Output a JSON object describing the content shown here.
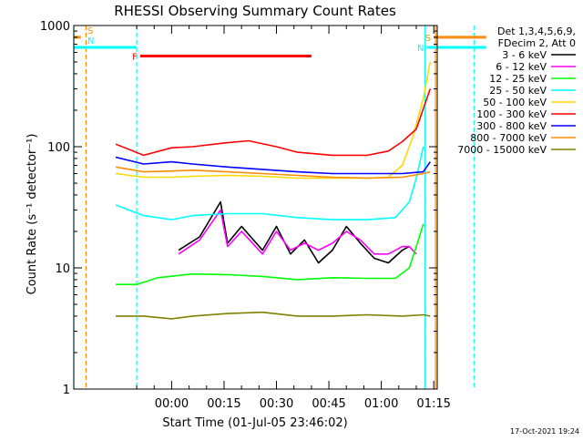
{
  "chart_data": {
    "type": "line",
    "title": "RHESSI Observing Summary Count Rates",
    "xlabel": "Start Time (01-Jul-05 23:46:02)",
    "ylabel": "Count Rate (s⁻¹ detector⁻¹)",
    "y_scale": "log",
    "ylim": [
      1,
      1000
    ],
    "xlim_minutes": [
      -14,
      90
    ],
    "x_ticks": [
      {
        "t": 14,
        "label": "00:00"
      },
      {
        "t": 29,
        "label": "00:15"
      },
      {
        "t": 44,
        "label": "00:30"
      },
      {
        "t": 59,
        "label": "00:45"
      },
      {
        "t": 74,
        "label": "01:00"
      },
      {
        "t": 89,
        "label": "01:15"
      }
    ],
    "y_ticks": [
      {
        "v": 1,
        "label": "1"
      },
      {
        "v": 10,
        "label": "10"
      },
      {
        "v": 100,
        "label": "100"
      },
      {
        "v": 1000,
        "label": "1000"
      }
    ],
    "legend_header": [
      "Det 1,3,4,5,6,9,",
      "FDecim 2, Att 0"
    ],
    "legend_placement": "right",
    "series": [
      {
        "name": "3 - 6 keV",
        "color": "#000000",
        "t": [
          16,
          22,
          28,
          30,
          34,
          40,
          44,
          48,
          52,
          56,
          60,
          64,
          68,
          72,
          76,
          80,
          82
        ],
        "values": [
          14,
          18,
          35,
          16,
          22,
          14,
          22,
          13,
          17,
          11,
          14,
          22,
          16,
          12,
          11,
          14,
          15
        ]
      },
      {
        "name": "6 - 12 keV",
        "color": "#ff00ff",
        "t": [
          16,
          22,
          28,
          30,
          34,
          40,
          44,
          48,
          52,
          56,
          60,
          64,
          68,
          72,
          76,
          80,
          82,
          84
        ],
        "values": [
          13,
          17,
          30,
          15,
          20,
          13,
          20,
          14,
          16,
          14,
          16,
          20,
          17,
          13,
          13,
          15,
          15,
          13
        ]
      },
      {
        "name": "12 - 25 keV",
        "color": "#00ff00",
        "t": [
          -2,
          4,
          10,
          20,
          30,
          40,
          50,
          60,
          70,
          78,
          82,
          84,
          86
        ],
        "values": [
          7.3,
          7.3,
          8.3,
          8.9,
          8.8,
          8.5,
          8,
          8.3,
          8.2,
          8.2,
          10,
          15,
          23
        ]
      },
      {
        "name": "25 - 50 keV",
        "color": "#00ffff",
        "t": [
          -2,
          6,
          14,
          20,
          30,
          40,
          50,
          60,
          70,
          78,
          82,
          84,
          86
        ],
        "values": [
          33,
          27,
          25,
          27,
          28,
          28,
          26,
          25,
          25,
          26,
          35,
          55,
          100
        ]
      },
      {
        "name": "50 - 100 keV",
        "color": "#ffd700",
        "t": [
          -2,
          6,
          14,
          20,
          30,
          40,
          50,
          60,
          70,
          76,
          80,
          83,
          86,
          88
        ],
        "values": [
          60,
          56,
          56,
          57,
          58,
          57,
          55,
          55,
          55,
          56,
          70,
          120,
          250,
          500
        ]
      },
      {
        "name": "100 - 300 keV",
        "color": "#ff0000",
        "t": [
          -2,
          6,
          14,
          20,
          30,
          36,
          44,
          50,
          60,
          70,
          76,
          80,
          84,
          88
        ],
        "values": [
          105,
          85,
          98,
          100,
          108,
          112,
          100,
          90,
          85,
          85,
          92,
          110,
          140,
          300
        ]
      },
      {
        "name": "300 - 800 keV",
        "color": "#0000ff",
        "t": [
          -2,
          6,
          14,
          20,
          30,
          40,
          50,
          60,
          70,
          80,
          86,
          88
        ],
        "values": [
          82,
          72,
          75,
          72,
          68,
          65,
          62,
          60,
          60,
          60,
          62,
          75
        ]
      },
      {
        "name": "800 - 7000 keV",
        "color": "#ff8c00",
        "t": [
          -2,
          6,
          14,
          20,
          30,
          40,
          50,
          60,
          70,
          80,
          86,
          88
        ],
        "values": [
          68,
          62,
          63,
          64,
          62,
          60,
          58,
          56,
          55,
          56,
          60,
          62
        ]
      },
      {
        "name": "7000 - 15000 keV",
        "color": "#808000",
        "t": [
          -2,
          6,
          14,
          20,
          30,
          40,
          50,
          60,
          70,
          80,
          86,
          88
        ],
        "values": [
          4,
          4,
          3.8,
          4,
          4.2,
          4.3,
          4,
          4,
          4.1,
          4,
          4.1,
          4
        ]
      }
    ],
    "flag_bars": [
      {
        "label": "S",
        "color": "#ff8c00",
        "t_start": -14,
        "t_end": -12,
        "value": 800
      },
      {
        "label": "S",
        "color": "#ff8c00",
        "t_start": 89,
        "t_end": 104,
        "value": 800
      },
      {
        "label": "N",
        "color": "#00ffff",
        "t_start": -14,
        "t_end": 4,
        "value": 660
      },
      {
        "label": "N",
        "color": "#00ffff",
        "t_start": 87,
        "t_end": 104,
        "value": 660
      },
      {
        "label": "F",
        "color": "#ff0000",
        "t_start": 5,
        "t_end": 54,
        "value": 560
      }
    ],
    "vertical_markers": [
      {
        "t": -10.5,
        "color": "#ff8c00",
        "dashed": true
      },
      {
        "t": 4,
        "color": "#00ffff",
        "dashed": true
      },
      {
        "t": 100.5,
        "color": "#00ffff",
        "dashed": true
      },
      {
        "t": -14,
        "color": "#00ffff",
        "dashed": false
      },
      {
        "t": 86.5,
        "color": "#00ffff",
        "dashed": false
      },
      {
        "t": 89.5,
        "color": "#ff8c00",
        "dashed": false
      }
    ]
  },
  "footer": {
    "timestamp": "17-Oct-2021 19:24"
  }
}
